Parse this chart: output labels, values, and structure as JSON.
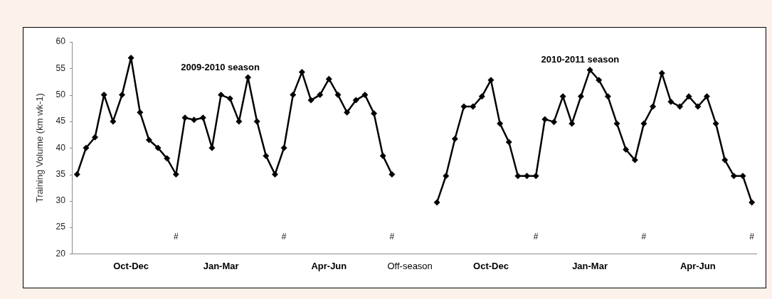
{
  "chart_data": {
    "type": "line",
    "ylabel": "Training Volume (km wk-1)",
    "categories": [
      null,
      null,
      null,
      null,
      null,
      null,
      "Oct-Dec",
      null,
      null,
      null,
      null,
      null,
      null,
      null,
      null,
      null,
      "Jan-Mar",
      null,
      null,
      null,
      null,
      null,
      null,
      null,
      null,
      null,
      null,
      null,
      "Apr-Jun",
      null,
      null,
      null,
      null,
      null,
      null,
      null,
      null,
      "Off-season",
      null,
      null,
      null,
      null,
      null,
      null,
      null,
      null,
      "Oct-Dec",
      null,
      null,
      null,
      null,
      null,
      null,
      null,
      null,
      null,
      null,
      "Jan-Mar",
      null,
      null,
      null,
      null,
      null,
      null,
      null,
      null,
      null,
      null,
      null,
      "Apr-Jun",
      null,
      null,
      null,
      null,
      null,
      null
    ],
    "series": [
      {
        "name": "2009-2010 season",
        "color": "#000000",
        "values": [
          35,
          40,
          42,
          50,
          45,
          50,
          57,
          46.7,
          41.5,
          40,
          38,
          35,
          45.7,
          45.3,
          45.7,
          40,
          50,
          49.3,
          45,
          53.3,
          45,
          38.5,
          35,
          40,
          50,
          54.3,
          49,
          50,
          53,
          50,
          46.7,
          49,
          50,
          46.5,
          38.5,
          35,
          null,
          null,
          null,
          null,
          null,
          null,
          null,
          null,
          null,
          null,
          null,
          null,
          null,
          null,
          null,
          null,
          null,
          null,
          null,
          null,
          null,
          null,
          null,
          null,
          null,
          null,
          null,
          null,
          null,
          null,
          null,
          null,
          null,
          null,
          null,
          null,
          null,
          null,
          null,
          null
        ]
      },
      {
        "name": "2010-2011 season",
        "color": "#000000",
        "values": [
          null,
          null,
          null,
          null,
          null,
          null,
          null,
          null,
          null,
          null,
          null,
          null,
          null,
          null,
          null,
          null,
          null,
          null,
          null,
          null,
          null,
          null,
          null,
          null,
          null,
          null,
          null,
          null,
          null,
          null,
          null,
          null,
          null,
          null,
          null,
          null,
          null,
          null,
          null,
          null,
          29.7,
          34.7,
          41.7,
          47.8,
          47.8,
          49.7,
          52.8,
          44.6,
          41.1,
          34.7,
          34.7,
          34.7,
          45.4,
          44.9,
          49.7,
          44.6,
          49.7,
          54.7,
          52.8,
          49.7,
          44.6,
          39.7,
          37.7,
          44.6,
          47.8,
          54.1,
          48.7,
          47.8,
          49.7,
          47.8,
          49.7,
          44.6,
          37.7,
          34.7,
          34.7,
          29.7
        ]
      }
    ],
    "ylim": [
      20,
      60
    ],
    "yticks": [
      20,
      25,
      30,
      35,
      40,
      45,
      50,
      55,
      60
    ],
    "annotations": [
      "#",
      "#",
      "#",
      "#",
      "#",
      "#"
    ],
    "marker": "diamond",
    "line_style": "solid",
    "grid": false,
    "legend": false
  }
}
